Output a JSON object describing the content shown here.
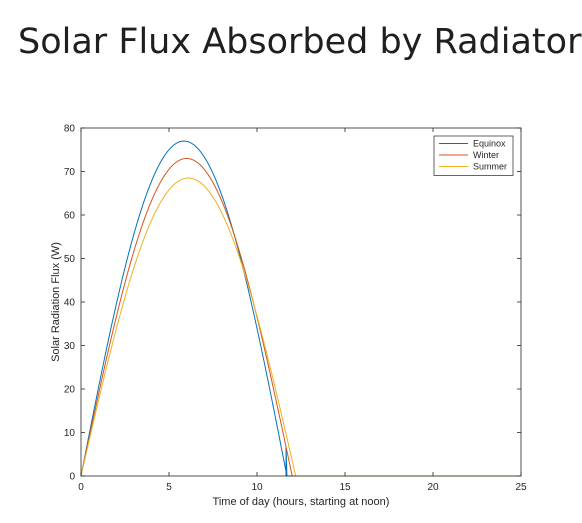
{
  "page": {
    "title": "Solar Flux Absorbed by Radiator"
  },
  "chart_data": {
    "type": "line",
    "title": "",
    "xlabel": "Time of day (hours, starting at noon)",
    "ylabel": "Solar Radiation Flux (W)",
    "xlim": [
      0,
      25
    ],
    "ylim": [
      0,
      80
    ],
    "xticks": [
      0,
      5,
      10,
      15,
      20,
      25
    ],
    "yticks": [
      0,
      10,
      20,
      30,
      40,
      50,
      60,
      70,
      80
    ],
    "grid": false,
    "legend_position": "top-right",
    "series": [
      {
        "name": "Equinox",
        "color": "#0072BD",
        "peak": 77,
        "zero_cross": 11.7,
        "drop_to_zero": true,
        "x": [
          0,
          1,
          2,
          3,
          4,
          5,
          6,
          7,
          8,
          9,
          10,
          11,
          11.7,
          11.7,
          25
        ],
        "y": [
          0,
          28,
          50,
          65,
          73,
          76.5,
          77,
          75,
          69,
          58,
          42,
          20,
          6,
          0,
          0
        ]
      },
      {
        "name": "Winter",
        "color": "#D95319",
        "peak": 73,
        "zero_cross": 12,
        "drop_to_zero": false,
        "x": [
          0,
          1,
          2,
          3,
          4,
          5,
          6,
          7,
          8,
          9,
          10,
          11,
          12,
          25
        ],
        "y": [
          0,
          26,
          47,
          61,
          69,
          72.5,
          73,
          71,
          65,
          55,
          40,
          22,
          0,
          0
        ]
      },
      {
        "name": "Summer",
        "color": "#EDB120",
        "peak": 68.5,
        "zero_cross": 12.2,
        "drop_to_zero": false,
        "x": [
          0,
          1,
          2,
          3,
          4,
          5,
          6,
          7,
          8,
          9,
          10,
          11,
          12.2,
          25
        ],
        "y": [
          0,
          24,
          44,
          57,
          65,
          68,
          68.5,
          66.5,
          61,
          52,
          38,
          22,
          0,
          0
        ]
      }
    ]
  }
}
